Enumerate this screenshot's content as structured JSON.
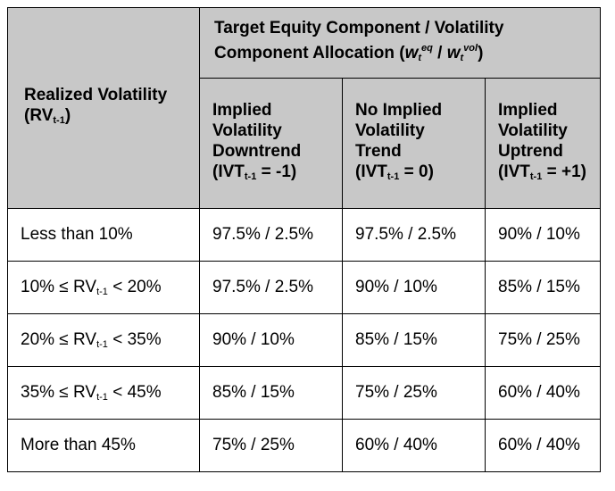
{
  "header": {
    "rv_title": "Realized Volatility",
    "rv_symbol": "(RV",
    "rv_sub": "t-1",
    "rv_close": ")",
    "group_title": "Target Equity Component / Volatility Component Allocation (",
    "w1": "w",
    "w1_sub": "t",
    "w1_sup": "eq",
    "slash": " / ",
    "w2": "w",
    "w2_sub": "t",
    "w2_sup": "vol",
    "group_close": ")",
    "col1_title": "Implied Volatility Downtrend",
    "col1_cond_pre": "(IVT",
    "col1_cond_sub": "t-1",
    "col1_cond_post": " = -1)",
    "col2_title": "No Implied Volatility Trend",
    "col2_cond_pre": "(IVT",
    "col2_cond_sub": "t-1",
    "col2_cond_post": " = 0)",
    "col3_title": "Implied Volatility Uptrend",
    "col3_cond_pre": "(IVT",
    "col3_cond_sub": "t-1",
    "col3_cond_post": " = +1)"
  },
  "rows": [
    {
      "pre": "Less than 10%",
      "sub": "",
      "post": "",
      "c1": "97.5% / 2.5%",
      "c2": "97.5% / 2.5%",
      "c3": "90% / 10%"
    },
    {
      "pre": "10% ≤ RV",
      "sub": "t-1",
      "post": " < 20%",
      "c1": "97.5% / 2.5%",
      "c2": "90% / 10%",
      "c3": "85% / 15%"
    },
    {
      "pre": "20% ≤ RV",
      "sub": "t-1",
      "post": " < 35%",
      "c1": "90% / 10%",
      "c2": "85% / 15%",
      "c3": "75% / 25%"
    },
    {
      "pre": "35% ≤ RV",
      "sub": "t-1",
      "post": " < 45%",
      "c1": "85% / 15%",
      "c2": "75% / 25%",
      "c3": "60% / 40%"
    },
    {
      "pre": "More than 45%",
      "sub": "",
      "post": "",
      "c1": "75% / 25%",
      "c2": "60% / 40%",
      "c3": "60% / 40%"
    }
  ]
}
